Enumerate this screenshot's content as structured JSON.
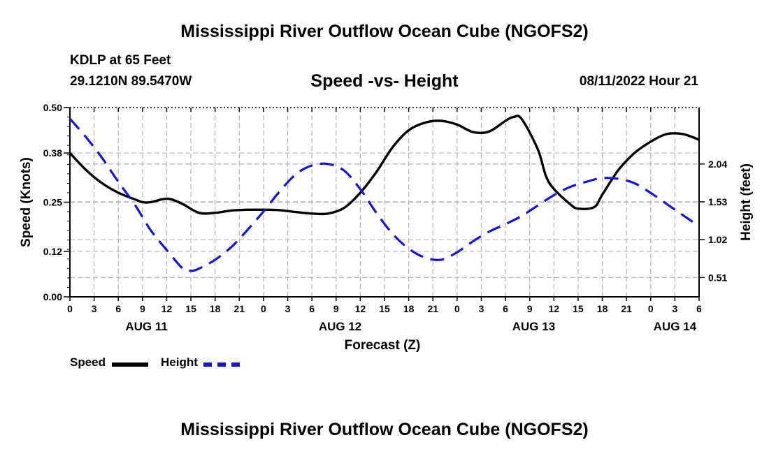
{
  "header": {
    "title": "Mississippi River Outflow Ocean Cube (NGOFS2)",
    "station": "KDLP at 65 Feet",
    "coords": "29.1210N  89.5470W",
    "subtitle": "Speed -vs- Height",
    "datetime": "08/11/2022 Hour 21"
  },
  "footer": {
    "title": "Mississippi River Outflow Ocean Cube (NGOFS2)"
  },
  "legend": {
    "speed_label": "Speed",
    "height_label": "Height"
  },
  "colors": {
    "speed": "#000000",
    "height": "#1515d0",
    "grid": "#b4b4b4"
  },
  "chart_data": {
    "type": "line",
    "title": "Speed -vs- Height",
    "xlabel": "Forecast (Z)",
    "ylabel": "Speed (Knots)",
    "y2label": "Height (feet)",
    "x_range": [
      0,
      78
    ],
    "x_unit": "hours from 00Z Aug 11",
    "ylim": [
      0,
      0.5
    ],
    "y2lim": [
      0.25,
      2.8
    ],
    "yticks": [
      0.0,
      0.12,
      0.25,
      0.38,
      0.5
    ],
    "ytick_labels": [
      "0.00",
      "0.12",
      "0.25",
      "0.38",
      "0.50"
    ],
    "y2ticks": [
      0.51,
      1.02,
      1.53,
      2.04
    ],
    "y2tick_labels": [
      "0.51",
      "1.02",
      "1.53",
      "2.04"
    ],
    "xtick_labels": [
      "0",
      "3",
      "6",
      "9",
      "12",
      "15",
      "18",
      "21",
      "0",
      "3",
      "6",
      "9",
      "12",
      "15",
      "18",
      "21",
      "0",
      "3",
      "6",
      "9",
      "12",
      "15",
      "18",
      "21",
      "0",
      "3",
      "6"
    ],
    "day_labels": [
      {
        "label": "AUG 11",
        "x": 9.5
      },
      {
        "label": "AUG 12",
        "x": 33.5
      },
      {
        "label": "AUG 13",
        "x": 57.5
      },
      {
        "label": "AUG 14",
        "x": 75
      }
    ],
    "grid": true,
    "series": [
      {
        "name": "Speed",
        "axis": "left",
        "style": "solid",
        "x": [
          0,
          2,
          4,
          6,
          8,
          9,
          10,
          11.5,
          12.5,
          14,
          16,
          18,
          20,
          22,
          24,
          26,
          28,
          30,
          32,
          34,
          36,
          38,
          40,
          42,
          44,
          46,
          48,
          50,
          52,
          54,
          55,
          56,
          58,
          59,
          60,
          62,
          63,
          65,
          66,
          68,
          70,
          72,
          74,
          76,
          78
        ],
        "values": [
          0.38,
          0.335,
          0.3,
          0.275,
          0.258,
          0.25,
          0.25,
          0.258,
          0.258,
          0.245,
          0.222,
          0.222,
          0.228,
          0.23,
          0.23,
          0.229,
          0.224,
          0.22,
          0.22,
          0.235,
          0.275,
          0.33,
          0.395,
          0.44,
          0.46,
          0.465,
          0.455,
          0.435,
          0.437,
          0.465,
          0.475,
          0.47,
          0.39,
          0.32,
          0.285,
          0.245,
          0.233,
          0.237,
          0.27,
          0.335,
          0.38,
          0.41,
          0.43,
          0.43,
          0.415
        ]
      },
      {
        "name": "Height",
        "axis": "right",
        "style": "dashed",
        "x": [
          0,
          2,
          4,
          6,
          8,
          10,
          12,
          14,
          15,
          16,
          18,
          20,
          22,
          24,
          26,
          28,
          30,
          32,
          34,
          36,
          38,
          40,
          42,
          44,
          46,
          48,
          50,
          52,
          54,
          56,
          58,
          60,
          62,
          64,
          66,
          68,
          70,
          72,
          74,
          76,
          78
        ],
        "values": [
          2.65,
          2.4,
          2.12,
          1.8,
          1.5,
          1.15,
          0.88,
          0.63,
          0.6,
          0.63,
          0.75,
          0.92,
          1.15,
          1.4,
          1.67,
          1.9,
          2.02,
          2.04,
          1.95,
          1.7,
          1.38,
          1.1,
          0.9,
          0.78,
          0.75,
          0.85,
          1.0,
          1.13,
          1.23,
          1.34,
          1.48,
          1.62,
          1.73,
          1.8,
          1.85,
          1.84,
          1.78,
          1.65,
          1.5,
          1.35,
          1.2
        ]
      }
    ]
  }
}
